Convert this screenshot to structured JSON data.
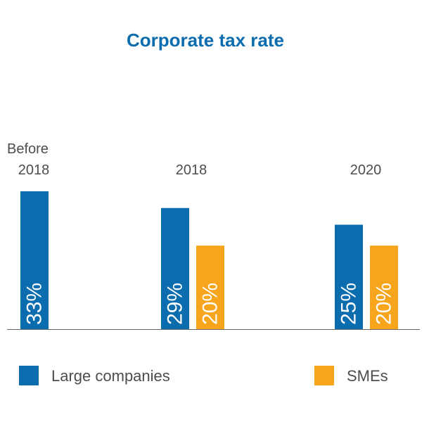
{
  "chart_data": {
    "type": "bar",
    "title": "Corporate tax rate",
    "categories": [
      {
        "line1": "Before",
        "line2": "2018"
      },
      {
        "line1": "",
        "line2": "2018"
      },
      {
        "line1": "",
        "line2": "2020"
      }
    ],
    "series": [
      {
        "name": "Large companies",
        "color": "#0b6cae",
        "values": [
          33,
          29,
          25
        ],
        "labels": [
          "33%",
          "29%",
          "25%"
        ]
      },
      {
        "name": "SMEs",
        "color": "#f7a51d",
        "values": [
          null,
          20,
          20
        ],
        "labels": [
          null,
          "20%",
          "20%"
        ]
      }
    ],
    "ylim": [
      0,
      33
    ],
    "legend_position": "bottom",
    "title_color": "#0b6cae",
    "axis_color": "#666666",
    "grid": false
  }
}
